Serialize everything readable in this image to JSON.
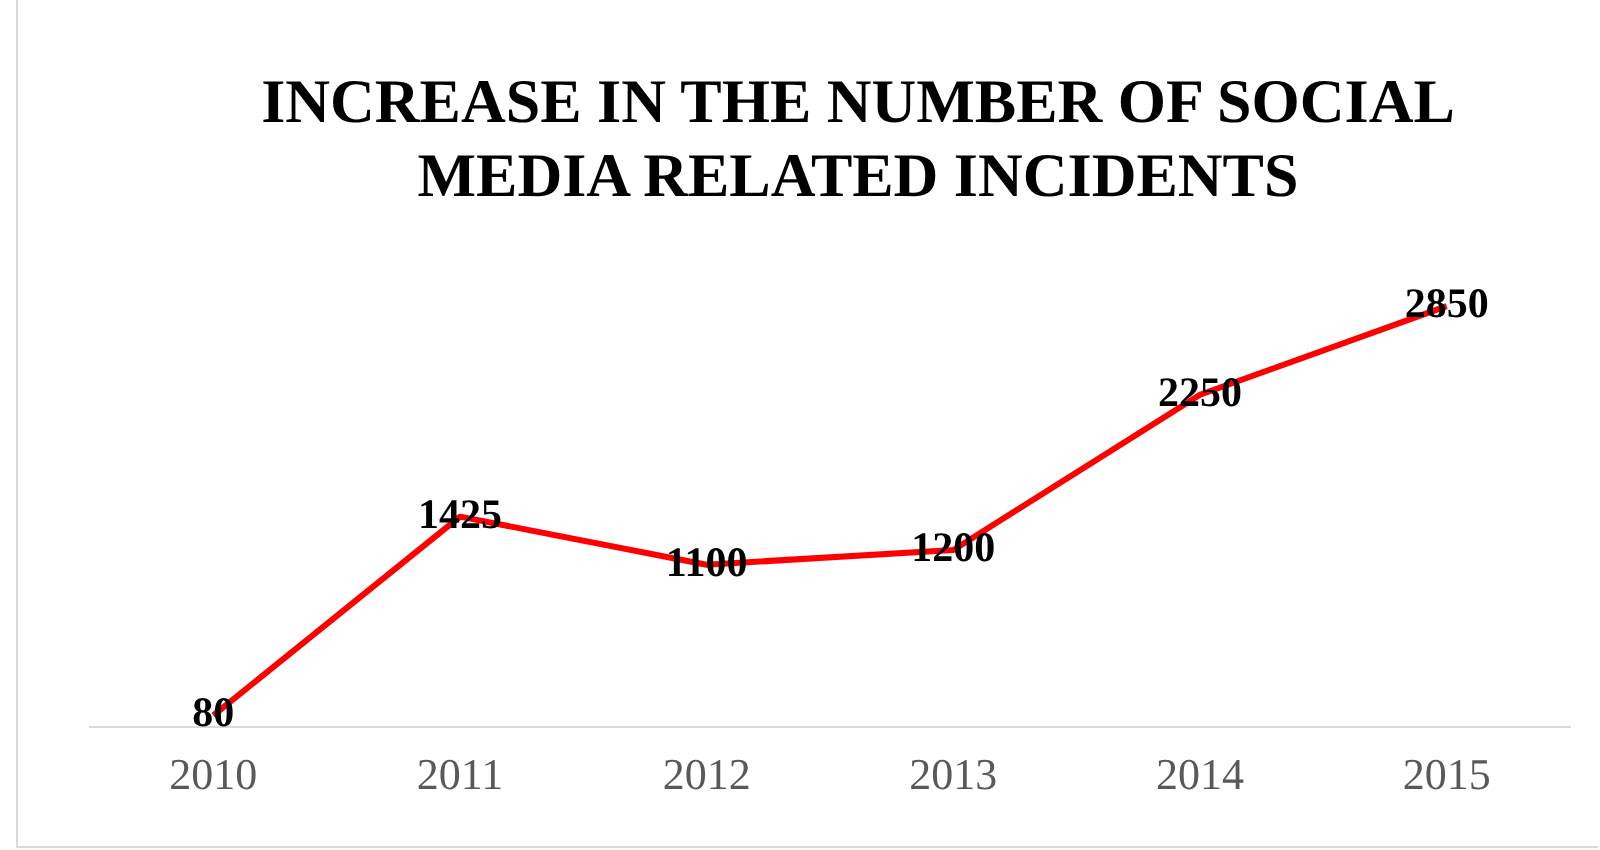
{
  "chart_data": {
    "type": "line",
    "title": "INCREASE IN THE NUMBER OF SOCIAL MEDIA RELATED INCIDENTS",
    "categories": [
      "2010",
      "2011",
      "2012",
      "2013",
      "2014",
      "2015"
    ],
    "series": [
      {
        "color": "#ff0000",
        "values": [
          80,
          1425,
          1100,
          1200,
          2250,
          2850
        ]
      }
    ],
    "data_labels": true,
    "grid": false,
    "legend": false,
    "marker": "none",
    "line_style": "solid",
    "tick_labels": "x"
  }
}
